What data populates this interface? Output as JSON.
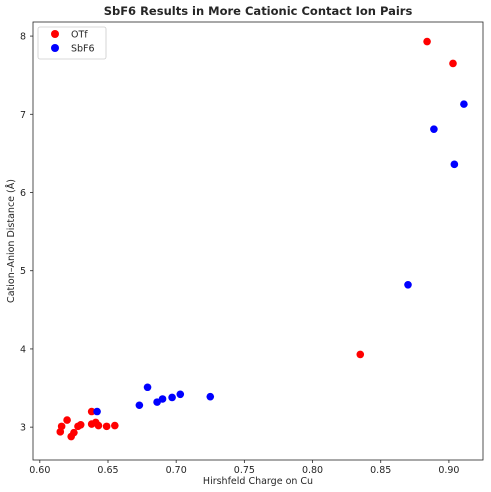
{
  "chart_data": {
    "type": "scatter",
    "title": "SbF6 Results in More Cationic Contact Ion Pairs",
    "xlabel": "Hirshfeld Charge on Cu",
    "ylabel": "Cation–Anion Distance (Å)",
    "xlim": [
      0.595,
      0.925
    ],
    "ylim": [
      2.58,
      8.18
    ],
    "xticks": [
      0.6,
      0.65,
      0.7,
      0.75,
      0.8,
      0.85,
      0.9
    ],
    "xtick_labels": [
      "0.60",
      "0.65",
      "0.70",
      "0.75",
      "0.80",
      "0.85",
      "0.90"
    ],
    "yticks": [
      3,
      4,
      5,
      6,
      7,
      8
    ],
    "ytick_labels": [
      "3",
      "4",
      "5",
      "6",
      "7",
      "8"
    ],
    "grid": false,
    "legend_position": "top-left",
    "series": [
      {
        "name": "OTf",
        "color": "#ff0000",
        "points": [
          [
            0.615,
            2.94
          ],
          [
            0.616,
            3.01
          ],
          [
            0.62,
            3.09
          ],
          [
            0.623,
            2.88
          ],
          [
            0.625,
            2.93
          ],
          [
            0.628,
            3.01
          ],
          [
            0.63,
            3.03
          ],
          [
            0.638,
            3.04
          ],
          [
            0.638,
            3.2
          ],
          [
            0.641,
            3.06
          ],
          [
            0.643,
            3.02
          ],
          [
            0.649,
            3.01
          ],
          [
            0.655,
            3.02
          ],
          [
            0.835,
            3.93
          ],
          [
            0.884,
            7.93
          ],
          [
            0.903,
            7.65
          ]
        ]
      },
      {
        "name": "SbF6",
        "color": "#0000ff",
        "points": [
          [
            0.642,
            3.2
          ],
          [
            0.673,
            3.28
          ],
          [
            0.679,
            3.51
          ],
          [
            0.686,
            3.32
          ],
          [
            0.69,
            3.36
          ],
          [
            0.697,
            3.38
          ],
          [
            0.703,
            3.42
          ],
          [
            0.725,
            3.39
          ],
          [
            0.87,
            4.82
          ],
          [
            0.889,
            6.81
          ],
          [
            0.904,
            6.36
          ],
          [
            0.911,
            7.13
          ]
        ]
      }
    ]
  }
}
